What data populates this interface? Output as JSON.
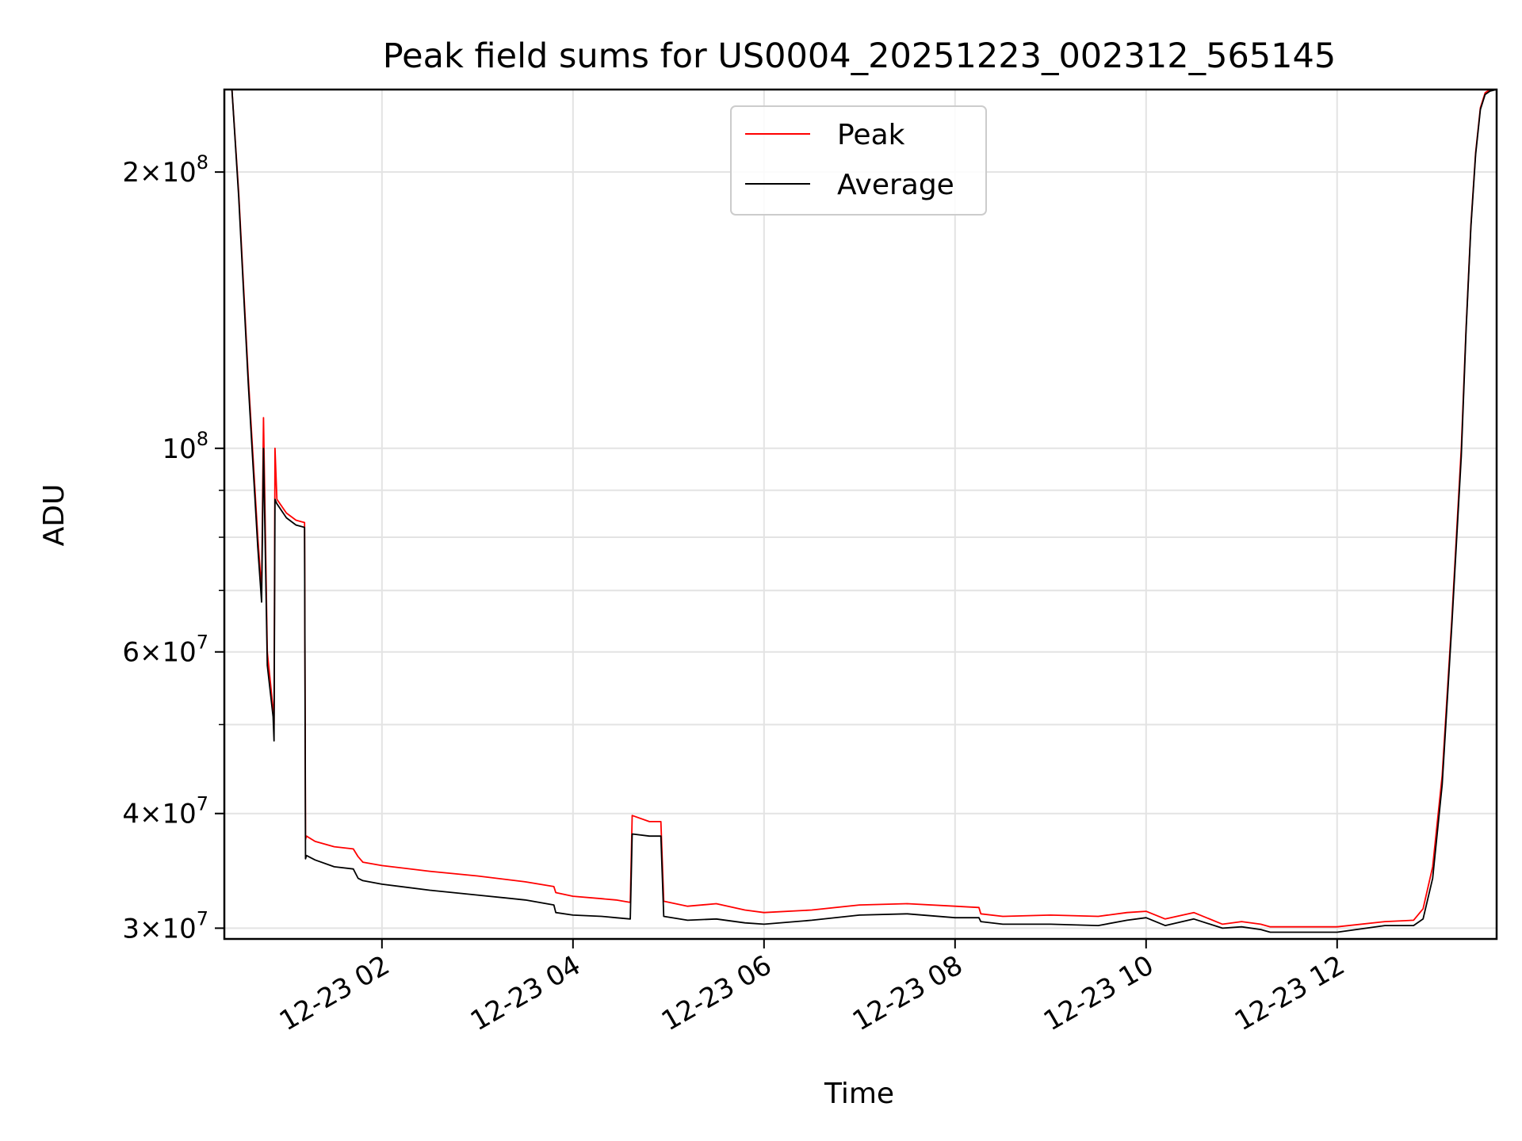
{
  "chart_data": {
    "type": "line",
    "title": "Peak field sums for US0004_20251223_002312_565145",
    "xlabel": "Time",
    "ylabel": "ADU",
    "yscale": "log",
    "ylim": [
      29200000,
      246000000
    ],
    "xlim": [
      0.35,
      13.67
    ],
    "grid": true,
    "legend_position": "top-center",
    "x_ticks": [
      {
        "value": 2,
        "label": "12-23 02"
      },
      {
        "value": 4,
        "label": "12-23 04"
      },
      {
        "value": 6,
        "label": "12-23 06"
      },
      {
        "value": 8,
        "label": "12-23 08"
      },
      {
        "value": 10,
        "label": "12-23 10"
      },
      {
        "value": 12,
        "label": "12-23 12"
      }
    ],
    "y_ticks": [
      {
        "value": 30000000,
        "mant": "3",
        "exp": "7"
      },
      {
        "value": 40000000,
        "mant": "4",
        "exp": "7"
      },
      {
        "value": 60000000,
        "mant": "6",
        "exp": "7"
      },
      {
        "value": 100000000,
        "mant": "",
        "exp": "8"
      },
      {
        "value": 200000000,
        "mant": "2",
        "exp": "8"
      }
    ],
    "y_minor_ticks": [
      50000000,
      70000000,
      80000000,
      90000000
    ],
    "series": [
      {
        "name": "Peak",
        "color": "#ff0000",
        "x": [
          0.35,
          0.43,
          0.5,
          0.6,
          0.7,
          0.74,
          0.76,
          0.8,
          0.86,
          0.87,
          0.88,
          0.9,
          1.0,
          1.1,
          1.19,
          1.2,
          1.21,
          1.3,
          1.5,
          1.7,
          1.75,
          1.8,
          2.0,
          2.5,
          3.0,
          3.5,
          3.8,
          3.82,
          4.0,
          4.3,
          4.45,
          4.6,
          4.62,
          4.8,
          4.92,
          4.95,
          5.2,
          5.5,
          5.8,
          6.0,
          6.5,
          7.0,
          7.5,
          8.0,
          8.25,
          8.27,
          8.5,
          9.0,
          9.5,
          9.8,
          10.0,
          10.2,
          10.5,
          10.8,
          11.0,
          11.2,
          11.3,
          11.5,
          12.0,
          12.5,
          12.8,
          12.9,
          13.0,
          13.1,
          13.2,
          13.3,
          13.35,
          13.4,
          13.45,
          13.5,
          13.55,
          13.6,
          13.67
        ],
        "y": [
          246000000,
          246000000,
          190000000,
          120000000,
          80000000,
          70000000,
          108000000,
          60000000,
          52000000,
          50000000,
          100000000,
          88000000,
          85000000,
          83500000,
          83000000,
          37500000,
          37800000,
          37300000,
          36800000,
          36600000,
          35900000,
          35400000,
          35100000,
          34600000,
          34200000,
          33700000,
          33300000,
          32800000,
          32500000,
          32300000,
          32200000,
          32000000,
          39800000,
          39200000,
          39200000,
          32100000,
          31700000,
          31900000,
          31400000,
          31200000,
          31400000,
          31800000,
          31900000,
          31700000,
          31600000,
          31100000,
          30900000,
          31000000,
          30900000,
          31200000,
          31300000,
          30700000,
          31200000,
          30300000,
          30500000,
          30300000,
          30100000,
          30100000,
          30100000,
          30500000,
          30600000,
          31500000,
          35000000,
          44000000,
          65000000,
          100000000,
          135000000,
          175000000,
          210000000,
          235000000,
          244000000,
          246000000,
          246000000
        ]
      },
      {
        "name": "Average",
        "color": "#000000",
        "x": [
          0.35,
          0.43,
          0.5,
          0.6,
          0.7,
          0.74,
          0.76,
          0.8,
          0.86,
          0.87,
          0.88,
          0.9,
          1.0,
          1.1,
          1.19,
          1.2,
          1.21,
          1.3,
          1.5,
          1.7,
          1.75,
          1.8,
          2.0,
          2.5,
          3.0,
          3.5,
          3.8,
          3.82,
          4.0,
          4.3,
          4.45,
          4.6,
          4.62,
          4.8,
          4.92,
          4.95,
          5.2,
          5.5,
          5.8,
          6.0,
          6.5,
          7.0,
          7.5,
          8.0,
          8.25,
          8.27,
          8.5,
          9.0,
          9.5,
          9.8,
          10.0,
          10.2,
          10.5,
          10.8,
          11.0,
          11.2,
          11.3,
          11.5,
          12.0,
          12.5,
          12.8,
          12.9,
          13.0,
          13.1,
          13.2,
          13.3,
          13.35,
          13.4,
          13.45,
          13.5,
          13.55,
          13.6,
          13.67
        ],
        "y": [
          246000000,
          246000000,
          188000000,
          118000000,
          78000000,
          68000000,
          100000000,
          58000000,
          51000000,
          48000000,
          88000000,
          87000000,
          84000000,
          82500000,
          82000000,
          35700000,
          36000000,
          35600000,
          35000000,
          34800000,
          34000000,
          33800000,
          33500000,
          33000000,
          32600000,
          32200000,
          31800000,
          31200000,
          31000000,
          30900000,
          30800000,
          30700000,
          38000000,
          37800000,
          37800000,
          30900000,
          30600000,
          30700000,
          30400000,
          30300000,
          30600000,
          31000000,
          31100000,
          30800000,
          30800000,
          30500000,
          30300000,
          30300000,
          30200000,
          30600000,
          30800000,
          30200000,
          30700000,
          30000000,
          30100000,
          29900000,
          29700000,
          29700000,
          29700000,
          30200000,
          30200000,
          30700000,
          34000000,
          43000000,
          64000000,
          98000000,
          134000000,
          174000000,
          209000000,
          234000000,
          243000000,
          245000000,
          246000000
        ]
      }
    ]
  }
}
